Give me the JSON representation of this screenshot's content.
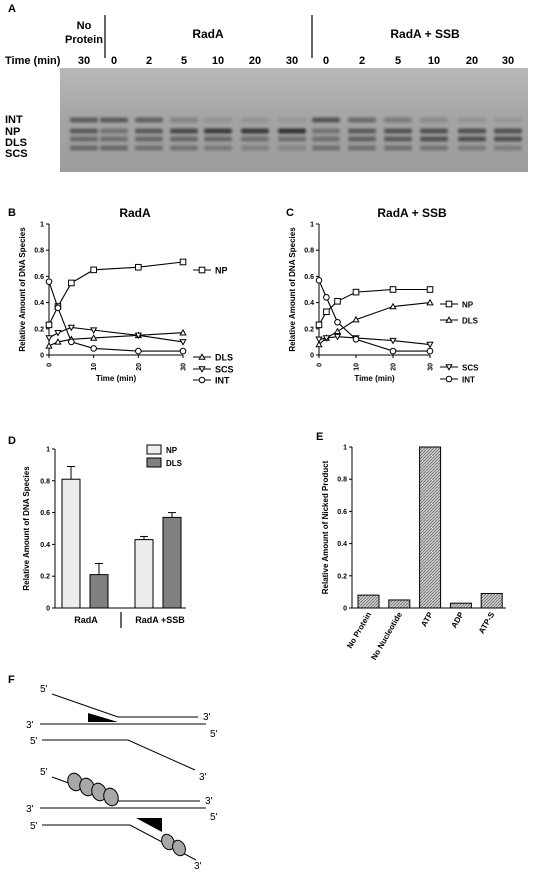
{
  "panels": {
    "A": {
      "letter": "A",
      "group_no_protein": "No Protein",
      "group_no_protein_line1": "No",
      "group_no_protein_line2": "Protein",
      "group_rada": "RadA",
      "group_rada_ssb": "RadA + SSB",
      "time_label": "Time (min)",
      "times": [
        "30",
        "0",
        "2",
        "5",
        "10",
        "20",
        "30",
        "0",
        "2",
        "5",
        "10",
        "20",
        "30"
      ],
      "band_labels": [
        "INT",
        "NP",
        "DLS",
        "SCS"
      ]
    },
    "B": {
      "letter": "B",
      "chart_data": {
        "type": "line",
        "title": "RadA",
        "xlabel": "Time (min)",
        "ylabel": "Relative Amount of DNA Species",
        "xlim": [
          0,
          30
        ],
        "ylim": [
          0,
          1.0
        ],
        "xticks": [
          0,
          10,
          20,
          30
        ],
        "yticks": [
          0,
          0.2,
          0.4,
          0.6,
          0.8,
          1.0
        ],
        "series": [
          {
            "name": "NP",
            "marker": "square",
            "x": [
              0,
              2,
              5,
              10,
              20,
              30
            ],
            "y": [
              0.23,
              0.37,
              0.55,
              0.65,
              0.67,
              0.71
            ]
          },
          {
            "name": "DLS",
            "marker": "triangle-up",
            "x": [
              0,
              2,
              5,
              10,
              20,
              30
            ],
            "y": [
              0.07,
              0.1,
              0.12,
              0.13,
              0.15,
              0.17
            ]
          },
          {
            "name": "SCS",
            "marker": "triangle-down",
            "x": [
              0,
              2,
              5,
              10,
              20,
              30
            ],
            "y": [
              0.13,
              0.17,
              0.21,
              0.19,
              0.15,
              0.1
            ]
          },
          {
            "name": "INT",
            "marker": "circle",
            "x": [
              0,
              2,
              5,
              10,
              20,
              30
            ],
            "y": [
              0.56,
              0.36,
              0.1,
              0.05,
              0.03,
              0.03
            ]
          }
        ]
      }
    },
    "C": {
      "letter": "C",
      "chart_data": {
        "type": "line",
        "title": "RadA + SSB",
        "xlabel": "Time (min)",
        "ylabel": "Relative Amount of DNA Species",
        "xlim": [
          0,
          30
        ],
        "ylim": [
          0,
          1.0
        ],
        "xticks": [
          0,
          10,
          20,
          30
        ],
        "yticks": [
          0,
          0.2,
          0.4,
          0.6,
          0.8,
          1.0
        ],
        "series": [
          {
            "name": "NP",
            "marker": "square",
            "x": [
              0,
              2,
              5,
              10,
              20,
              30
            ],
            "y": [
              0.23,
              0.33,
              0.41,
              0.48,
              0.5,
              0.5
            ]
          },
          {
            "name": "DLS",
            "marker": "triangle-up",
            "x": [
              0,
              2,
              5,
              10,
              20,
              30
            ],
            "y": [
              0.08,
              0.13,
              0.18,
              0.27,
              0.37,
              0.4
            ]
          },
          {
            "name": "SCS",
            "marker": "triangle-down",
            "x": [
              0,
              2,
              5,
              10,
              20,
              30
            ],
            "y": [
              0.12,
              0.13,
              0.14,
              0.13,
              0.11,
              0.08
            ]
          },
          {
            "name": "INT",
            "marker": "circle",
            "x": [
              0,
              2,
              5,
              10,
              20,
              30
            ],
            "y": [
              0.57,
              0.44,
              0.25,
              0.12,
              0.03,
              0.03
            ]
          }
        ]
      }
    },
    "D": {
      "letter": "D",
      "chart_data": {
        "type": "bar",
        "ylabel": "Relative Amount of DNA Species",
        "ylim": [
          0,
          1.0
        ],
        "yticks": [
          0,
          0.2,
          0.4,
          0.6,
          0.8,
          1.0
        ],
        "categories": [
          "RadA",
          "RadA +SSB"
        ],
        "series": [
          {
            "name": "NP",
            "color": "#ededed",
            "values": [
              0.81,
              0.43
            ],
            "errors": [
              0.08,
              0.02
            ]
          },
          {
            "name": "DLS",
            "color": "#808080",
            "values": [
              0.21,
              0.57
            ],
            "errors": [
              0.07,
              0.03
            ]
          }
        ],
        "legend": "top-right"
      }
    },
    "E": {
      "letter": "E",
      "chart_data": {
        "type": "bar",
        "ylabel": "Relative Amount of Nicked Product",
        "ylim": [
          0,
          1.0
        ],
        "yticks": [
          0,
          0.2,
          0.4,
          0.6,
          0.8,
          1.0
        ],
        "categories": [
          "No Protein",
          "No Nucleotide",
          "ATP",
          "ADP",
          "ATP-S"
        ],
        "values": [
          0.08,
          0.05,
          1.0,
          0.03,
          0.09
        ],
        "fill": "hatched"
      }
    },
    "F": {
      "letter": "F",
      "end_5": "5'",
      "end_3": "3'"
    }
  },
  "colors": {
    "gel_bg": "#a4a4a4",
    "band_dark": "#3a3a3a",
    "line": "#000000",
    "marker_fill": "#ffffff",
    "bar_hatch": "#8c8c8c",
    "protein_bead": "#a8a8a8"
  }
}
